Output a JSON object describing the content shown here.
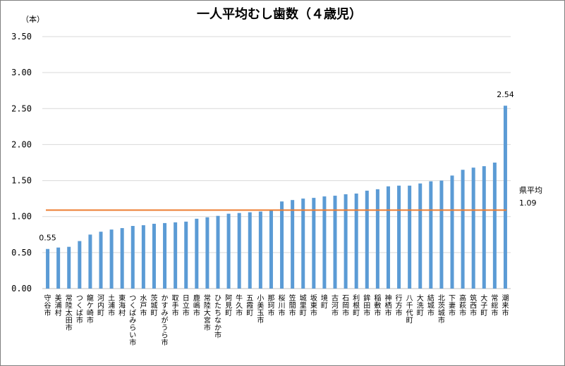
{
  "chart_data": {
    "type": "bar",
    "title": "一人平均むし歯数（４歳児）",
    "ylabel": "（本）",
    "xlabel": "",
    "ylim": [
      0,
      3.5
    ],
    "yticks": [
      "0.00",
      "0.50",
      "1.00",
      "1.50",
      "2.00",
      "2.50",
      "3.00",
      "3.50"
    ],
    "grid": true,
    "legend": "none",
    "categories": [
      "守谷市",
      "美浦村",
      "常陸太田市",
      "つくば市",
      "龍ケ崎市",
      "河内町",
      "土浦市",
      "東海村",
      "つくばみらい市",
      "水戸市",
      "茨城町",
      "かすみがうら市",
      "取手市",
      "日立市",
      "鹿嶋市",
      "常陸大宮市",
      "ひたちなか市",
      "阿見町",
      "牛久市",
      "五霞町",
      "小美玉市",
      "那珂市",
      "桜川市",
      "笠間市",
      "城里町",
      "坂東市",
      "境町",
      "古河市",
      "石岡市",
      "利根町",
      "鉾田市",
      "稲敷市",
      "神栖市",
      "行方市",
      "八千代町",
      "大洗町",
      "結城市",
      "北茨城市",
      "下妻市",
      "高萩市",
      "筑西市",
      "大子町",
      "常総市",
      "潮来市"
    ],
    "values": [
      0.55,
      0.57,
      0.58,
      0.66,
      0.75,
      0.79,
      0.82,
      0.84,
      0.87,
      0.88,
      0.9,
      0.91,
      0.92,
      0.93,
      0.97,
      0.99,
      1.01,
      1.04,
      1.05,
      1.06,
      1.07,
      1.1,
      1.21,
      1.23,
      1.25,
      1.26,
      1.28,
      1.29,
      1.31,
      1.32,
      1.36,
      1.38,
      1.42,
      1.43,
      1.43,
      1.46,
      1.49,
      1.5,
      1.57,
      1.65,
      1.68,
      1.7,
      1.75,
      2.54
    ],
    "bar_color": "#5b9bd5",
    "reference_line": {
      "label": "県平均",
      "value": 1.09,
      "value_text": "1.09",
      "color": "#ed7d31"
    },
    "data_labels": [
      {
        "index": 0,
        "text": "0.55"
      },
      {
        "index": 43,
        "text": "2.54"
      }
    ]
  }
}
